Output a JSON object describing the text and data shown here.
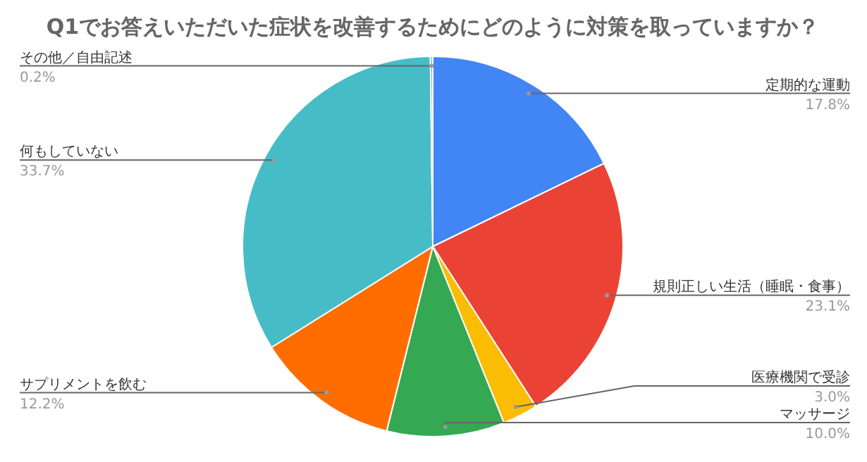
{
  "chart_data": {
    "type": "pie",
    "title": "Q1でお答えいただいた症状を改善するためにどのように対策を取っていますか？",
    "categories": [
      "定期的な運動",
      "規則正しい生活（睡眠・食事）",
      "医療機関で受診",
      "マッサージ",
      "サプリメントを飲む",
      "何もしていない",
      "その他／自由記述"
    ],
    "values": [
      17.8,
      23.1,
      3.0,
      10.0,
      12.2,
      33.7,
      0.2
    ],
    "value_labels": [
      "17.8%",
      "23.1%",
      "3.0%",
      "10.0%",
      "12.2%",
      "33.7%",
      "0.2%"
    ],
    "colors": [
      "#4285f4",
      "#ea4335",
      "#fbbc04",
      "#34a853",
      "#ff6d01",
      "#46bdc6",
      "#7baaf7"
    ]
  }
}
